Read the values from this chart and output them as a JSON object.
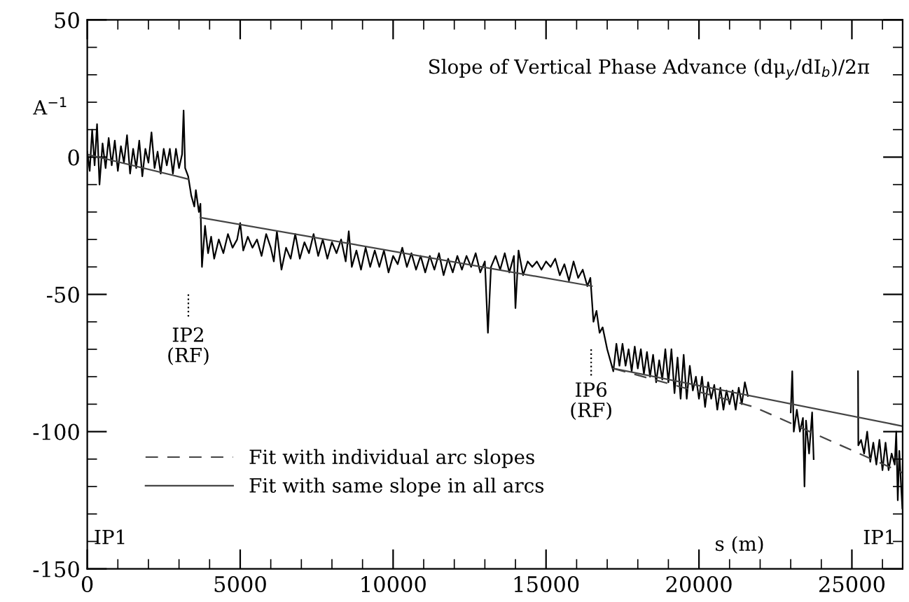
{
  "chart_data": {
    "type": "line",
    "title": "Slope of Vertical Phase Advance (dμ$_{y}$/dI$_{b}$)/2π",
    "xlabel": "s (m)",
    "ylabel": "A$^{−1}$",
    "xlim": [
      0,
      26659
    ],
    "ylim": [
      -150,
      50
    ],
    "xticks": [
      0,
      5000,
      10000,
      15000,
      20000,
      25000
    ],
    "yticks": [
      -150,
      -100,
      -50,
      0,
      50
    ],
    "grid": false,
    "legend": "bottom left",
    "marker": "none",
    "annotations": [
      "IP1",
      "IP2\n(RF)",
      "IP6\n(RF)",
      "IP1"
    ],
    "series": [
      {
        "color": "#000000",
        "line_style": "solid",
        "x": [
          0,
          80,
          160,
          240,
          320,
          400,
          500,
          600,
          700,
          800,
          900,
          1000,
          1100,
          1200,
          1300,
          1400,
          1500,
          1600,
          1700,
          1800,
          1900,
          2000,
          2100,
          2200,
          2300,
          2400,
          2500,
          2600,
          2700,
          2800,
          2900,
          3000,
          3100,
          3150,
          3200,
          3300,
          3400,
          3500,
          3550,
          3650,
          3700,
          3750,
          3850,
          3950,
          4050,
          4150,
          4300,
          4450,
          4600,
          4750,
          4900,
          5000,
          5100,
          5250,
          5400,
          5550,
          5700,
          5850,
          6000,
          6100,
          6200,
          6350,
          6500,
          6650,
          6800,
          6950,
          7100,
          7250,
          7400,
          7550,
          7700,
          7850,
          8000,
          8150,
          8300,
          8450,
          8550,
          8650,
          8800,
          8950,
          9100,
          9250,
          9400,
          9550,
          9700,
          9850,
          10000,
          10150,
          10300,
          10450,
          10600,
          10750,
          10900,
          11050,
          11200,
          11350,
          11500,
          11650,
          11800,
          11950,
          12100,
          12250,
          12400,
          12550,
          12700,
          12850,
          13000,
          13100,
          13200,
          13350,
          13500,
          13650,
          13800,
          13950,
          14000,
          14100,
          14250,
          14400,
          14550,
          14700,
          14850,
          15000,
          15150,
          15300,
          15450,
          15600,
          15750,
          15900,
          16050,
          16200,
          16350,
          16450,
          16550,
          16650,
          16750,
          16850,
          17000,
          17200,
          17300,
          17400,
          17500,
          17600,
          17700,
          17800,
          17900,
          18000,
          18100,
          18200,
          18300,
          18400,
          18500,
          18600,
          18700,
          18800,
          18900,
          19000,
          19100,
          19200,
          19300,
          19400,
          19500,
          19600,
          19700,
          19800,
          19900,
          20000,
          20100,
          20200,
          20300,
          20400,
          20500,
          20600,
          20700,
          20800,
          20900,
          21000,
          21100,
          21200,
          21300,
          21400,
          21500,
          21600,
          21700,
          23000,
          23050,
          23100,
          23200,
          23300,
          23400,
          23450,
          23500,
          23600,
          23700,
          23750,
          23800,
          25200,
          25210,
          25300,
          25400,
          25500,
          25600,
          25700,
          25800,
          25900,
          26000,
          26100,
          26200,
          26300,
          26400,
          26450,
          26500,
          26550,
          26600,
          26650
        ],
        "values": [
          2,
          -5,
          10,
          -3,
          12,
          -10,
          5,
          -4,
          7,
          -3,
          6,
          -5,
          4,
          -2,
          8,
          -6,
          3,
          -4,
          6,
          -7,
          3,
          -2,
          9,
          -4,
          2,
          -6,
          3,
          -3,
          3,
          -6,
          3,
          -4,
          1,
          17,
          -4,
          -7,
          -14,
          -18,
          -12,
          -20,
          -17,
          -40,
          -25,
          -35,
          -29,
          -37,
          -30,
          -35,
          -28,
          -33,
          -30,
          -24,
          -34,
          -29,
          -33,
          -30,
          -36,
          -28,
          -33,
          -38,
          -27,
          -41,
          -33,
          -37,
          -28,
          -37,
          -31,
          -35,
          -28,
          -36,
          -30,
          -37,
          -31,
          -35,
          -30,
          -38,
          -27,
          -40,
          -34,
          -41,
          -33,
          -40,
          -34,
          -40,
          -34,
          -42,
          -36,
          -39,
          -33,
          -40,
          -35,
          -41,
          -36,
          -42,
          -36,
          -41,
          -35,
          -43,
          -37,
          -42,
          -36,
          -41,
          -36,
          -40,
          -35,
          -42,
          -38,
          -64,
          -40,
          -36,
          -41,
          -35,
          -42,
          -36,
          -55,
          -34,
          -43,
          -38,
          -40,
          -38,
          -41,
          -38,
          -40,
          -37,
          -43,
          -39,
          -45,
          -38,
          -44,
          -41,
          -47,
          -44,
          -60,
          -56,
          -64,
          -62,
          -70,
          -78,
          -68,
          -76,
          -68,
          -76,
          -70,
          -78,
          -69,
          -77,
          -70,
          -79,
          -71,
          -80,
          -72,
          -82,
          -74,
          -81,
          -70,
          -82,
          -70,
          -86,
          -73,
          -88,
          -72,
          -88,
          -76,
          -85,
          -80,
          -88,
          -80,
          -91,
          -82,
          -88,
          -83,
          -92,
          -84,
          -92,
          -85,
          -90,
          -85,
          -92,
          -84,
          -90,
          -82,
          -87,
          null,
          -93,
          -78,
          -100,
          -92,
          -100,
          -95,
          -120,
          -96,
          -108,
          -93,
          -110,
          null,
          -78,
          -105,
          -103,
          -108,
          -100,
          -111,
          -104,
          -112,
          -103,
          -114,
          -104,
          -114,
          -108,
          -112,
          -100,
          -125,
          -107,
          -118,
          -128
        ]
      },
      {
        "name": "Fit with individual arc slopes",
        "color": "#444444",
        "line_style": "dashed",
        "x": [
          17200,
          21800,
          26659
        ],
        "values": [
          -77,
          -91,
          -115
        ]
      },
      {
        "name": "Fit with same slope in all arcs",
        "color": "#444444",
        "line_style": "solid",
        "x": [
          0,
          3300,
          3500,
          3700,
          16500,
          16800,
          17200,
          26659
        ],
        "values": [
          1,
          -8,
          null,
          -22,
          -47,
          null,
          -77,
          -98
        ]
      }
    ]
  }
}
